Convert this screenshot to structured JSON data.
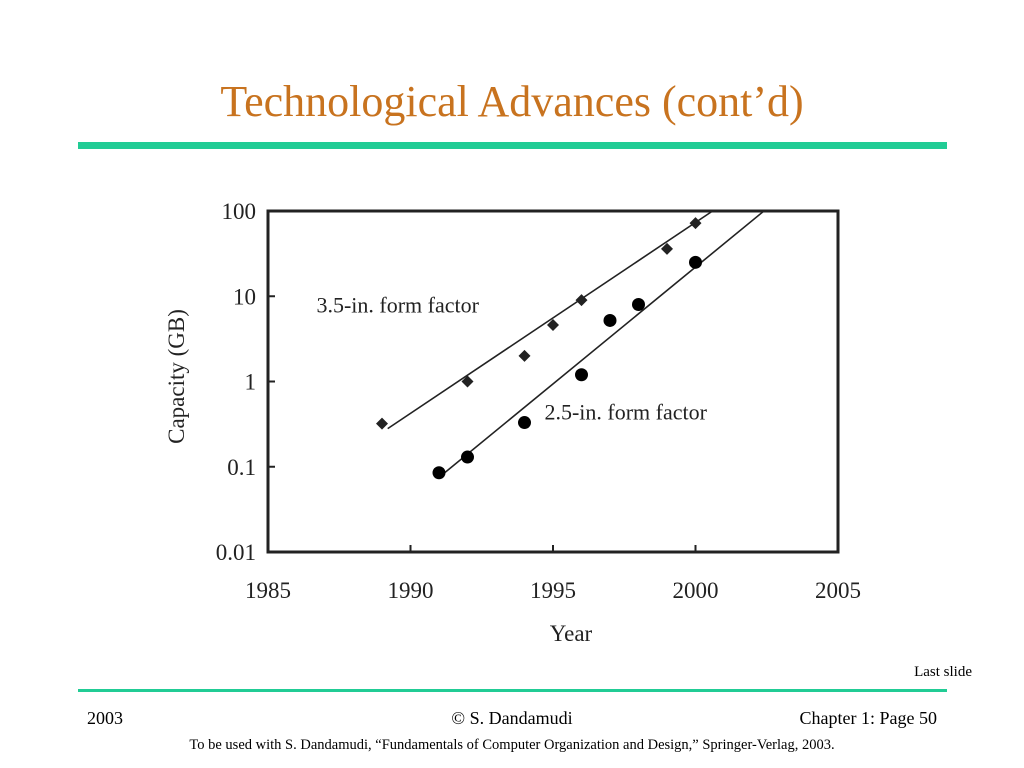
{
  "slide": {
    "title": "Technological Advances (cont’d)",
    "nav_link": "Last slide",
    "footer_left": "2003",
    "footer_center": "© S. Dandamudi",
    "footer_right": "Chapter 1: Page 50",
    "footer_note": "To be used with S. Dandamudi, “Fundamentals of Computer Organization and Design,” Springer-Verlag, 2003."
  },
  "chart_data": {
    "type": "scatter",
    "xlabel": "Year",
    "ylabel": "Capacity (GB)",
    "xlim": [
      1985,
      2005
    ],
    "ylim": [
      0.01,
      100
    ],
    "y_scale": "log",
    "x_ticks": [
      "1985",
      "1990",
      "1995",
      "2000",
      "2005"
    ],
    "y_ticks": [
      "100",
      "10",
      "1",
      "0.1",
      "0.01"
    ],
    "series": [
      {
        "name": "3.5-in. form factor",
        "marker": "diamond",
        "x": [
          1989,
          1992,
          1994,
          1995,
          1996,
          1999,
          2000
        ],
        "y": [
          0.32,
          1.0,
          2.0,
          4.6,
          9.0,
          36,
          72
        ],
        "trend": {
          "x": [
            1989.2,
            2000.6
          ],
          "y": [
            0.28,
            100
          ]
        }
      },
      {
        "name": "2.5-in. form factor",
        "marker": "circle",
        "x": [
          1991,
          1992,
          1994,
          1996,
          1997,
          1998,
          2000
        ],
        "y": [
          0.085,
          0.13,
          0.33,
          1.2,
          5.2,
          8.0,
          25
        ],
        "trend": {
          "x": [
            1991,
            2002.4
          ],
          "y": [
            0.075,
            100
          ]
        }
      }
    ],
    "colors": {
      "series": "#222222",
      "axes": "#222222"
    }
  }
}
